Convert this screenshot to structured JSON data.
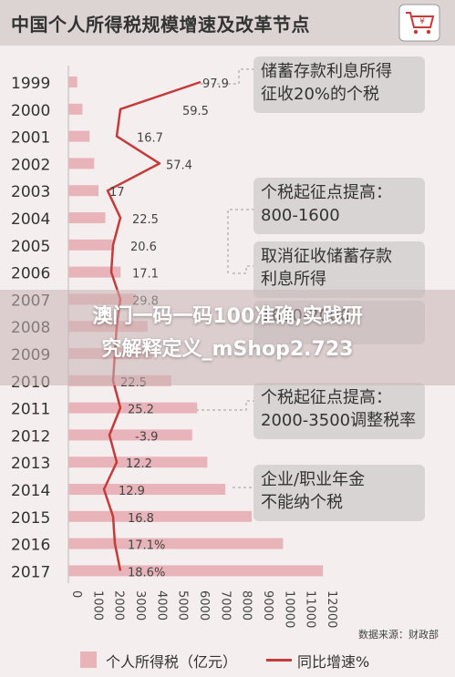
{
  "title": "中国个人所得税规模增速及改革节点",
  "banner": {
    "line1": "澳门一码一码100准确,实践研",
    "line2": "究解释定义_mShop2.723"
  },
  "source": "数据来源：财政部",
  "legend": {
    "bar_label": "个人所得税（亿元）",
    "line_label": "同比增速%"
  },
  "colors": {
    "bar": "#e9b4b9",
    "line": "#c63a3a",
    "box": "#d9d4d4"
  },
  "annotations": [
    {
      "line1": "储蓄存款利息所得",
      "line2": "征收20%的个税"
    },
    {
      "line1": "个税起征点提高：",
      "line2": "800-1600"
    },
    {
      "line1": "取消征收储蓄存款",
      "line2": "利息所得"
    },
    {
      "line1": "",
      "line2": "1600-2000"
    },
    {
      "line1": "个税起征点提高：",
      "line2": "2000-3500调整税率"
    },
    {
      "line1": "企业/职业年金",
      "line2": "不能纳个税"
    }
  ],
  "chart_data": {
    "type": "bar",
    "orientation": "horizontal",
    "categories": [
      "1999",
      "2000",
      "2001",
      "2002",
      "2003",
      "2004",
      "2005",
      "2006",
      "2007",
      "2008",
      "2009",
      "2010",
      "2011",
      "2012",
      "2013",
      "2014",
      "2015",
      "2016",
      "2017"
    ],
    "series": [
      {
        "name": "个人所得税（亿元）",
        "type": "bar",
        "values": [
          414,
          660,
          996,
          1212,
          1418,
          1737,
          2094,
          2454,
          3186,
          3722,
          3944,
          4837,
          6054,
          5820,
          6532,
          7377,
          8618,
          10089,
          11966
        ]
      },
      {
        "name": "同比增速%",
        "type": "line",
        "values": [
          97.9,
          59.5,
          16.7,
          57.4,
          17,
          22.5,
          20.6,
          17.1,
          29.8,
          null,
          null,
          22.5,
          25.2,
          -3.9,
          12.2,
          12.9,
          16.8,
          "17.1%",
          "18.6%"
        ],
        "labels": [
          "97.9",
          "59.5",
          "16.7",
          "57.4",
          "17",
          "22.5",
          "20.6",
          "17.1",
          "29.8",
          "",
          "",
          "22.5",
          "25.2",
          "-3.9",
          "12.2",
          "12.9",
          "16.8",
          "17.1%",
          "18.6%"
        ]
      }
    ],
    "x_ticks": [
      "0",
      "1000",
      "2000",
      "3000",
      "4000",
      "5000",
      "6000",
      "7000",
      "8000",
      "9000",
      "10000",
      "11000",
      "12000"
    ],
    "xlim": [
      0,
      12000
    ]
  }
}
